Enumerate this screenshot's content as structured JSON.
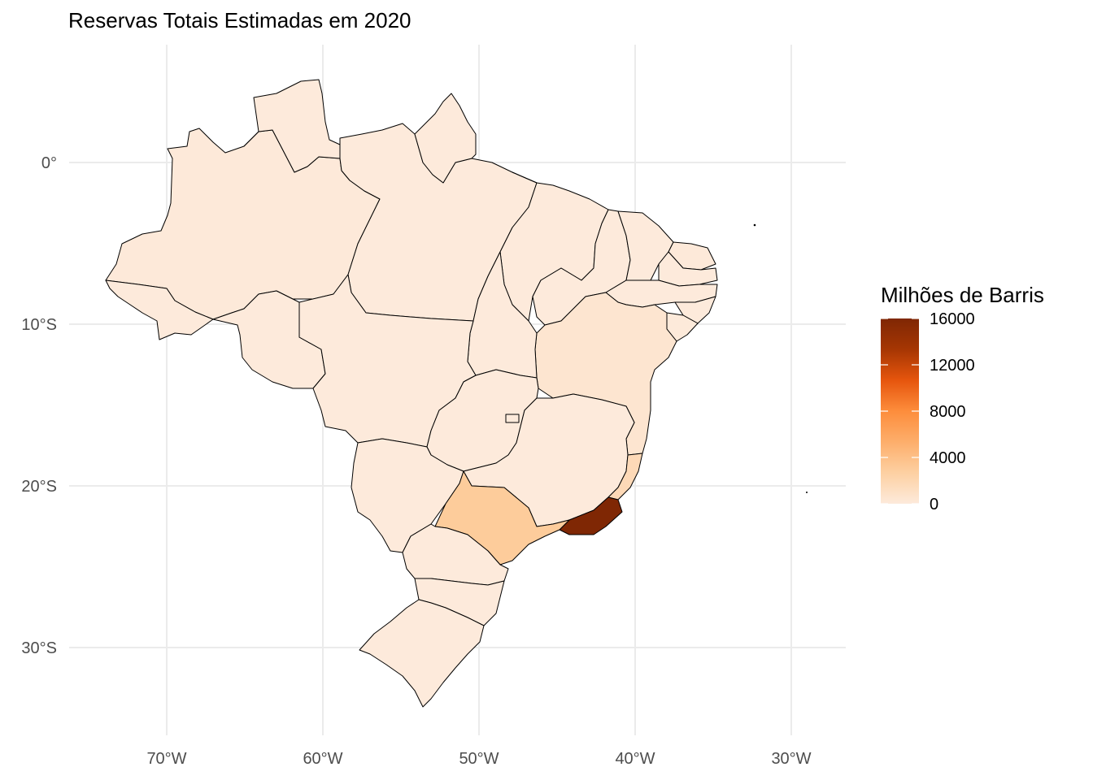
{
  "title": "Reservas Totais Estimadas em 2020",
  "chart_data": {
    "type": "choropleth",
    "title": "Reservas Totais Estimadas em 2020",
    "x_ticks": [
      {
        "value": -70,
        "label": "70°W"
      },
      {
        "value": -60,
        "label": "60°W"
      },
      {
        "value": -50,
        "label": "50°W"
      },
      {
        "value": -40,
        "label": "40°W"
      },
      {
        "value": -30,
        "label": "30°W"
      }
    ],
    "y_ticks": [
      {
        "value": 0,
        "label": "0°"
      },
      {
        "value": -10,
        "label": "10°S"
      },
      {
        "value": -20,
        "label": "20°S"
      },
      {
        "value": -30,
        "label": "30°S"
      }
    ],
    "xlim": [
      -75,
      -27
    ],
    "ylim": [
      -35,
      7
    ],
    "grid": true,
    "legend": {
      "title": "Milhões de Barris",
      "placement": "right",
      "range": [
        0,
        16000
      ],
      "labels": [
        {
          "value": 16000,
          "label": "16000"
        },
        {
          "value": 12000,
          "label": "12000"
        },
        {
          "value": 8000,
          "label": "8000"
        },
        {
          "value": 4000,
          "label": "4000"
        },
        {
          "value": 0,
          "label": "0"
        }
      ],
      "colors": [
        "#fdeadb",
        "#fdd0a2",
        "#fdae6b",
        "#fd8d3c",
        "#e6550d",
        "#a63603",
        "#7f2704"
      ]
    },
    "regions": [
      {
        "name": "RJ",
        "value": 16000
      },
      {
        "name": "SP",
        "value": 3000
      },
      {
        "name": "ES",
        "value": 1700
      },
      {
        "name": "BA",
        "value": 500
      },
      {
        "name": "AM",
        "value": 100
      },
      {
        "name": "RN",
        "value": 100
      },
      {
        "name": "SE",
        "value": 50
      },
      {
        "name": "AL",
        "value": 10
      },
      {
        "name": "MA",
        "value": 20
      },
      {
        "name": "CE",
        "value": 10
      },
      {
        "name": "PR",
        "value": 0
      },
      {
        "name": "SC",
        "value": 0
      },
      {
        "name": "RS",
        "value": 0
      },
      {
        "name": "MG",
        "value": 0
      },
      {
        "name": "GO",
        "value": 0
      },
      {
        "name": "DF",
        "value": 0
      },
      {
        "name": "MS",
        "value": 0
      },
      {
        "name": "MT",
        "value": 0
      },
      {
        "name": "RO",
        "value": 0
      },
      {
        "name": "AC",
        "value": 0
      },
      {
        "name": "RR",
        "value": 0
      },
      {
        "name": "PA",
        "value": 0
      },
      {
        "name": "AP",
        "value": 0
      },
      {
        "name": "TO",
        "value": 0
      },
      {
        "name": "PI",
        "value": 0
      },
      {
        "name": "PB",
        "value": 0
      },
      {
        "name": "PE",
        "value": 0
      }
    ]
  }
}
